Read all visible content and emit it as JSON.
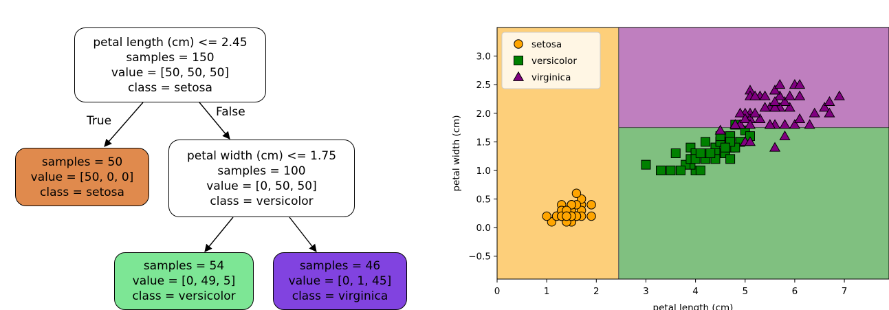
{
  "tree": {
    "root": {
      "lines": [
        "petal length (cm) <= 2.45",
        "samples = 150",
        "value = [50, 50, 50]",
        "class = setosa"
      ],
      "fill": "#ffffff"
    },
    "left_leaf": {
      "lines": [
        "samples = 50",
        "value = [50, 0, 0]",
        "class = setosa"
      ],
      "fill": "#e08a4d"
    },
    "right_split": {
      "lines": [
        "petal width (cm) <= 1.75",
        "samples = 100",
        "value = [0, 50, 50]",
        "class = versicolor"
      ],
      "fill": "#ffffff"
    },
    "leaf_versicolor": {
      "lines": [
        "samples = 54",
        "value = [0, 49, 5]",
        "class = versicolor"
      ],
      "fill": "#7de695"
    },
    "leaf_virginica": {
      "lines": [
        "samples = 46",
        "value = [0, 1, 45]",
        "class = virginica"
      ],
      "fill": "#8143e0"
    },
    "edge_true": "True",
    "edge_false": "False"
  },
  "chart_data": {
    "type": "scatter",
    "xlabel": "petal length (cm)",
    "ylabel": "petal width (cm)",
    "xlim": [
      0,
      7.9
    ],
    "ylim": [
      -0.9,
      3.5
    ],
    "xticks": [
      0,
      1,
      2,
      3,
      4,
      5,
      6,
      7
    ],
    "yticks": [
      -0.5,
      0.0,
      0.5,
      1.0,
      1.5,
      2.0,
      2.5,
      3.0
    ],
    "ytick_labels": [
      "−0.5",
      "0.0",
      "0.5",
      "1.0",
      "1.5",
      "2.0",
      "2.5",
      "3.0"
    ],
    "decision_regions": [
      {
        "class": "setosa",
        "x": [
          0,
          2.45
        ],
        "y": [
          -0.9,
          3.5
        ],
        "color": "#fdcf7a"
      },
      {
        "class": "versicolor",
        "x": [
          2.45,
          7.9
        ],
        "y": [
          -0.9,
          1.75
        ],
        "color": "#80c080"
      },
      {
        "class": "virginica",
        "x": [
          2.45,
          7.9
        ],
        "y": [
          1.75,
          3.5
        ],
        "color": "#bf7fbf"
      }
    ],
    "legend_position": "top-left",
    "series": [
      {
        "name": "setosa",
        "marker": "circle",
        "color": "#ffa500",
        "points": [
          [
            1.4,
            0.2
          ],
          [
            1.4,
            0.2
          ],
          [
            1.3,
            0.2
          ],
          [
            1.5,
            0.2
          ],
          [
            1.4,
            0.2
          ],
          [
            1.7,
            0.4
          ],
          [
            1.4,
            0.3
          ],
          [
            1.5,
            0.2
          ],
          [
            1.4,
            0.2
          ],
          [
            1.5,
            0.1
          ],
          [
            1.5,
            0.2
          ],
          [
            1.6,
            0.2
          ],
          [
            1.4,
            0.1
          ],
          [
            1.1,
            0.1
          ],
          [
            1.2,
            0.2
          ],
          [
            1.5,
            0.4
          ],
          [
            1.3,
            0.4
          ],
          [
            1.4,
            0.3
          ],
          [
            1.7,
            0.3
          ],
          [
            1.5,
            0.3
          ],
          [
            1.7,
            0.2
          ],
          [
            1.5,
            0.4
          ],
          [
            1.0,
            0.2
          ],
          [
            1.7,
            0.5
          ],
          [
            1.9,
            0.2
          ],
          [
            1.6,
            0.2
          ],
          [
            1.6,
            0.4
          ],
          [
            1.5,
            0.2
          ],
          [
            1.4,
            0.2
          ],
          [
            1.6,
            0.2
          ],
          [
            1.6,
            0.2
          ],
          [
            1.5,
            0.4
          ],
          [
            1.5,
            0.1
          ],
          [
            1.4,
            0.2
          ],
          [
            1.5,
            0.2
          ],
          [
            1.2,
            0.2
          ],
          [
            1.3,
            0.2
          ],
          [
            1.4,
            0.1
          ],
          [
            1.3,
            0.2
          ],
          [
            1.5,
            0.2
          ],
          [
            1.3,
            0.3
          ],
          [
            1.3,
            0.3
          ],
          [
            1.3,
            0.2
          ],
          [
            1.6,
            0.6
          ],
          [
            1.9,
            0.4
          ],
          [
            1.4,
            0.3
          ],
          [
            1.6,
            0.2
          ],
          [
            1.4,
            0.2
          ],
          [
            1.5,
            0.2
          ],
          [
            1.4,
            0.2
          ]
        ]
      },
      {
        "name": "versicolor",
        "marker": "square",
        "color": "#008000",
        "points": [
          [
            4.7,
            1.4
          ],
          [
            4.5,
            1.5
          ],
          [
            4.9,
            1.5
          ],
          [
            4.0,
            1.3
          ],
          [
            4.6,
            1.5
          ],
          [
            4.5,
            1.3
          ],
          [
            4.7,
            1.6
          ],
          [
            3.3,
            1.0
          ],
          [
            4.6,
            1.3
          ],
          [
            3.9,
            1.4
          ],
          [
            3.5,
            1.0
          ],
          [
            4.2,
            1.5
          ],
          [
            4.0,
            1.0
          ],
          [
            4.7,
            1.4
          ],
          [
            3.6,
            1.3
          ],
          [
            4.4,
            1.4
          ],
          [
            4.5,
            1.5
          ],
          [
            4.1,
            1.0
          ],
          [
            4.5,
            1.5
          ],
          [
            3.9,
            1.1
          ],
          [
            4.8,
            1.8
          ],
          [
            4.0,
            1.3
          ],
          [
            4.9,
            1.5
          ],
          [
            4.7,
            1.2
          ],
          [
            4.3,
            1.3
          ],
          [
            4.4,
            1.4
          ],
          [
            4.8,
            1.4
          ],
          [
            5.0,
            1.7
          ],
          [
            4.5,
            1.5
          ],
          [
            3.5,
            1.0
          ],
          [
            3.8,
            1.1
          ],
          [
            3.7,
            1.0
          ],
          [
            3.9,
            1.2
          ],
          [
            5.1,
            1.6
          ],
          [
            4.5,
            1.5
          ],
          [
            4.5,
            1.6
          ],
          [
            4.7,
            1.5
          ],
          [
            4.4,
            1.3
          ],
          [
            4.1,
            1.3
          ],
          [
            4.0,
            1.3
          ],
          [
            4.4,
            1.2
          ],
          [
            4.6,
            1.4
          ],
          [
            4.0,
            1.2
          ],
          [
            3.3,
            1.0
          ],
          [
            4.2,
            1.3
          ],
          [
            4.2,
            1.2
          ],
          [
            4.2,
            1.3
          ],
          [
            4.3,
            1.3
          ],
          [
            3.0,
            1.1
          ],
          [
            4.1,
            1.3
          ]
        ]
      },
      {
        "name": "virginica",
        "marker": "triangle",
        "color": "#800080",
        "points": [
          [
            6.0,
            2.5
          ],
          [
            5.1,
            1.9
          ],
          [
            5.9,
            2.1
          ],
          [
            5.6,
            1.8
          ],
          [
            5.8,
            2.2
          ],
          [
            6.6,
            2.1
          ],
          [
            4.5,
            1.7
          ],
          [
            6.3,
            1.8
          ],
          [
            5.8,
            1.8
          ],
          [
            6.1,
            2.5
          ],
          [
            5.1,
            2.0
          ],
          [
            5.3,
            1.9
          ],
          [
            5.5,
            2.1
          ],
          [
            5.0,
            2.0
          ],
          [
            5.1,
            2.4
          ],
          [
            5.3,
            2.3
          ],
          [
            5.5,
            1.8
          ],
          [
            6.7,
            2.2
          ],
          [
            6.9,
            2.3
          ],
          [
            5.0,
            1.5
          ],
          [
            5.7,
            2.3
          ],
          [
            4.9,
            2.0
          ],
          [
            6.7,
            2.0
          ],
          [
            4.9,
            1.8
          ],
          [
            5.7,
            2.1
          ],
          [
            6.0,
            1.8
          ],
          [
            4.8,
            1.8
          ],
          [
            4.9,
            1.8
          ],
          [
            5.6,
            2.1
          ],
          [
            5.8,
            1.6
          ],
          [
            6.1,
            1.9
          ],
          [
            6.4,
            2.0
          ],
          [
            5.6,
            2.2
          ],
          [
            5.1,
            1.5
          ],
          [
            5.6,
            1.4
          ],
          [
            6.1,
            2.3
          ],
          [
            5.6,
            2.4
          ],
          [
            5.5,
            1.8
          ],
          [
            4.8,
            1.8
          ],
          [
            5.4,
            2.1
          ],
          [
            5.6,
            2.4
          ],
          [
            5.1,
            2.3
          ],
          [
            5.1,
            1.9
          ],
          [
            5.9,
            2.3
          ],
          [
            5.7,
            2.5
          ],
          [
            5.2,
            2.3
          ],
          [
            5.0,
            1.9
          ],
          [
            5.2,
            2.0
          ],
          [
            5.4,
            2.3
          ],
          [
            5.1,
            1.8
          ]
        ]
      }
    ]
  }
}
